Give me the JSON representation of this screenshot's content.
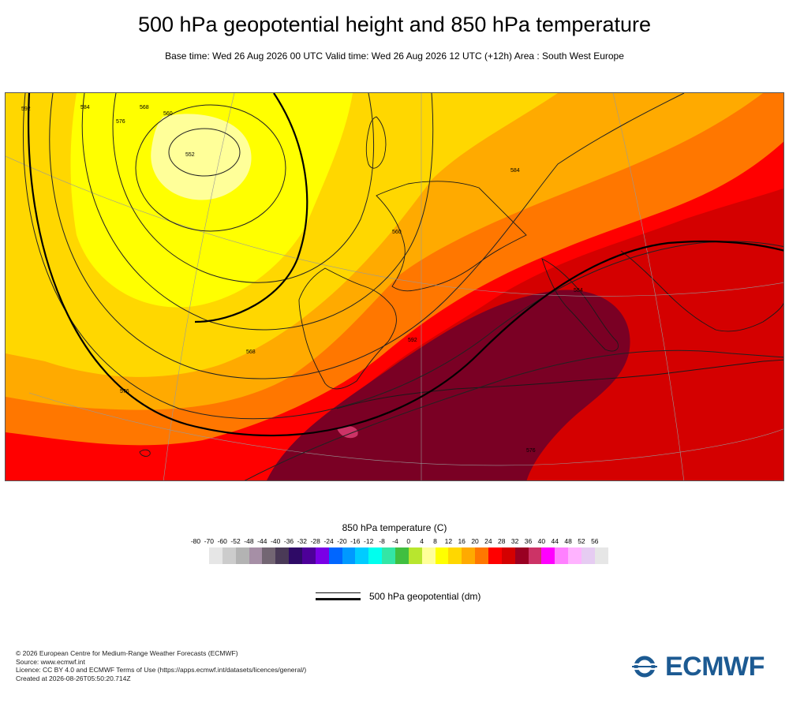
{
  "header": {
    "title": "500 hPa geopotential height and 850 hPa temperature",
    "subtitle": "Base time: Wed 26 Aug 2026 00 UTC Valid time: Wed 26 Aug 2026 12 UTC (+12h) Area : South West Europe"
  },
  "map": {
    "contour_labels": [
      "552",
      "560",
      "568",
      "576",
      "584",
      "592",
      "560",
      "568",
      "576",
      "584",
      "592",
      "584",
      "576"
    ],
    "land_fill_color": "#e8e8e8"
  },
  "colorbar": {
    "title": "850 hPa temperature (C)",
    "ticks": [
      "-80",
      "-70",
      "-60",
      "-52",
      "-48",
      "-44",
      "-40",
      "-36",
      "-32",
      "-28",
      "-24",
      "-20",
      "-16",
      "-12",
      "-8",
      "-4",
      "0",
      "4",
      "8",
      "12",
      "16",
      "20",
      "24",
      "28",
      "32",
      "36",
      "40",
      "44",
      "48",
      "52",
      "56"
    ],
    "colors": [
      "#e6e6e6",
      "#cccccc",
      "#b3b3b3",
      "#a68fa6",
      "#736673",
      "#4a3a57",
      "#2e0a66",
      "#4d0099",
      "#7a00e6",
      "#0066ff",
      "#0099ff",
      "#00ccff",
      "#00ffee",
      "#33e6a6",
      "#40bf40",
      "#b8e62e",
      "#ffff99",
      "#ffff00",
      "#ffd700",
      "#ffaa00",
      "#ff7700",
      "#ff0000",
      "#d40000",
      "#990022",
      "#cc3366",
      "#ff00ff",
      "#ff80ff",
      "#ffb3ff",
      "#e6ccf2",
      "#e6e6e6"
    ]
  },
  "legend": {
    "line_label": "500 hPa geopotential (dm)"
  },
  "footer": {
    "lines": [
      "© 2026 European Centre for Medium-Range Weather Forecasts (ECMWF)",
      "Source: www.ecmwf.int",
      "Licence: CC BY 4.0 and ECMWF Terms of Use (https://apps.ecmwf.int/datasets/licences/general/)",
      "Created at 2026-08-26T05:50:20.714Z"
    ]
  },
  "logo": {
    "text": "ECMWF",
    "color": "#1c5a92"
  }
}
